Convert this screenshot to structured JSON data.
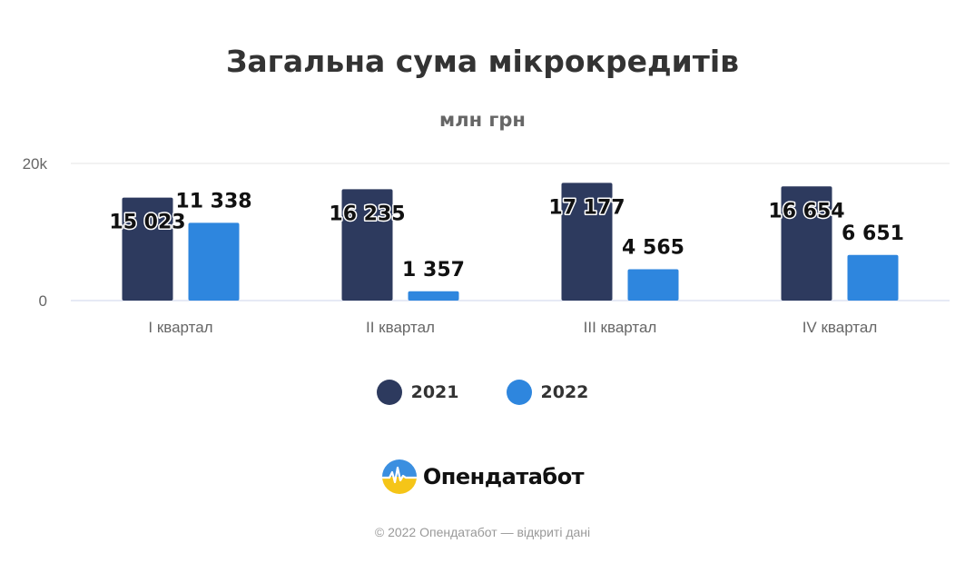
{
  "chart_data": {
    "type": "bar",
    "title": "Загальна сума мікрокредитів",
    "subtitle": "млн грн",
    "categories": [
      "I квартал",
      "II квартал",
      "III квартал",
      "IV квартал"
    ],
    "series": [
      {
        "name": "2021",
        "color": "#2d3a5e",
        "values": [
          15023,
          16235,
          17177,
          16654
        ],
        "labels": [
          "15 023",
          "16 235",
          "17 177",
          "16 654"
        ]
      },
      {
        "name": "2022",
        "color": "#2e86de",
        "values": [
          11338,
          1357,
          4565,
          6651
        ],
        "labels": [
          "11 338",
          "1 357",
          "4 565",
          "6 651"
        ]
      }
    ],
    "ylim": [
      0,
      20000
    ],
    "yticks": [
      {
        "value": 0,
        "label": "0"
      },
      {
        "value": 20000,
        "label": "20k"
      }
    ],
    "grid": true,
    "legend_position": "bottom"
  },
  "brand": {
    "name": "Опендатабот",
    "logo_icon": "opendatabot-logo-icon"
  },
  "credits": "© 2022 Опендатабот — відкриті дані"
}
